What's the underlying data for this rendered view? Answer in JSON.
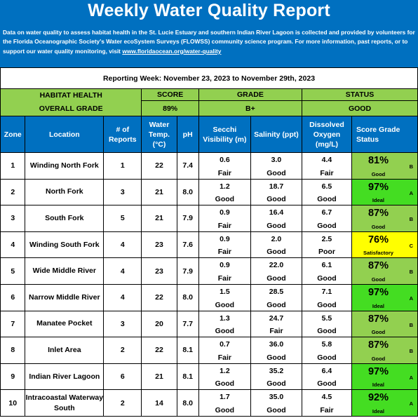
{
  "banner": {
    "title": "Weekly Water Quality Report",
    "description": "Data on water quality to assess habitat health in the St. Lucie Estuary and southern Indian River Lagoon is collected and provided by volunteers for the Florida Oceanographic Society's Water ecoSystem Surveys (FLOWSS) community science program.  For more information, past reports, or to support our water quality monitoring, visit ",
    "link": "www.floridaocean.org/water-quality",
    "background": "#0070c0"
  },
  "week": "Reporting Week: November 23, 2023 to November 29th, 2023",
  "summary": {
    "label_line1": "HABITAT HEALTH",
    "label_line2": "OVERALL GRADE",
    "score_label": "SCORE",
    "score_value": "89%",
    "grade_label": "GRADE",
    "grade_value": "B+",
    "status_label": "STATUS",
    "status_value": "GOOD",
    "color": "#92d050"
  },
  "headers": {
    "zone": "Zone",
    "location": "Location",
    "reports": "# of Reports",
    "temp": "Water Temp. (°C)",
    "ph": "pH",
    "secchi": "Secchi Visibility (m)",
    "salinity": "Salinity (ppt)",
    "oxygen": "Dissolved Oxygen (mg/L)",
    "score_status": "Score   Grade Status"
  },
  "rows": [
    {
      "zone": "1",
      "location": "Winding North Fork",
      "reports": "1",
      "temp": "22",
      "ph": "7.4",
      "secchi": "0.6",
      "secchi_status": "Fair",
      "salinity": "3.0",
      "salinity_status": "Good",
      "oxygen": "4.4",
      "oxygen_status": "Fair",
      "score": "81%",
      "status": "Good",
      "grade": "B",
      "color": "light-green"
    },
    {
      "zone": "2",
      "location": "North Fork",
      "reports": "3",
      "temp": "21",
      "ph": "8.0",
      "secchi": "1.2",
      "secchi_status": "Good",
      "salinity": "18.7",
      "salinity_status": "Good",
      "oxygen": "6.5",
      "oxygen_status": "Good",
      "score": "97%",
      "status": "Ideal",
      "grade": "A",
      "color": "bright-green"
    },
    {
      "zone": "3",
      "location": "South Fork",
      "reports": "5",
      "temp": "21",
      "ph": "7.9",
      "secchi": "0.9",
      "secchi_status": "Fair",
      "salinity": "16.4",
      "salinity_status": "Good",
      "oxygen": "6.7",
      "oxygen_status": "Good",
      "score": "87%",
      "status": "Good",
      "grade": "B",
      "color": "light-green"
    },
    {
      "zone": "4",
      "location": "Winding South Fork",
      "reports": "4",
      "temp": "23",
      "ph": "7.6",
      "secchi": "0.9",
      "secchi_status": "Fair",
      "salinity": "2.0",
      "salinity_status": "Good",
      "oxygen": "2.5",
      "oxygen_status": "Poor",
      "score": "76%",
      "status": "Satisfactory",
      "grade": "C",
      "color": "yellow"
    },
    {
      "zone": "5",
      "location": "Wide Middle River",
      "reports": "4",
      "temp": "23",
      "ph": "7.9",
      "secchi": "0.9",
      "secchi_status": "Fair",
      "salinity": "22.0",
      "salinity_status": "Good",
      "oxygen": "6.1",
      "oxygen_status": "Good",
      "score": "87%",
      "status": "Good",
      "grade": "B",
      "color": "light-green"
    },
    {
      "zone": "6",
      "location": "Narrow Middle River",
      "reports": "4",
      "temp": "22",
      "ph": "8.0",
      "secchi": "1.5",
      "secchi_status": "Good",
      "salinity": "28.5",
      "salinity_status": "Good",
      "oxygen": "7.1",
      "oxygen_status": "Good",
      "score": "97%",
      "status": "Ideal",
      "grade": "A",
      "color": "bright-green"
    },
    {
      "zone": "7",
      "location": "Manatee Pocket",
      "reports": "3",
      "temp": "20",
      "ph": "7.7",
      "secchi": "1.3",
      "secchi_status": "Good",
      "salinity": "24.7",
      "salinity_status": "Fair",
      "oxygen": "5.5",
      "oxygen_status": "Good",
      "score": "87%",
      "status": "Good",
      "grade": "B",
      "color": "light-green"
    },
    {
      "zone": "8",
      "location": "Inlet Area",
      "reports": "2",
      "temp": "22",
      "ph": "8.1",
      "secchi": "0.7",
      "secchi_status": "Fair",
      "salinity": "36.0",
      "salinity_status": "Good",
      "oxygen": "5.8",
      "oxygen_status": "Good",
      "score": "87%",
      "status": "Good",
      "grade": "B",
      "color": "light-green"
    },
    {
      "zone": "9",
      "location": "Indian River Lagoon",
      "reports": "6",
      "temp": "21",
      "ph": "8.1",
      "secchi": "1.2",
      "secchi_status": "Good",
      "salinity": "35.2",
      "salinity_status": "Good",
      "oxygen": "6.4",
      "oxygen_status": "Good",
      "score": "97%",
      "status": "Ideal",
      "grade": "A",
      "color": "bright-green"
    },
    {
      "zone": "10",
      "location": "Intracoastal Waterway South",
      "reports": "2",
      "temp": "14",
      "ph": "8.0",
      "secchi": "1.7",
      "secchi_status": "Good",
      "salinity": "35.0",
      "salinity_status": "Good",
      "oxygen": "4.5",
      "oxygen_status": "Fair",
      "score": "92%",
      "status": "Ideal",
      "grade": "A",
      "color": "bright-green"
    }
  ]
}
